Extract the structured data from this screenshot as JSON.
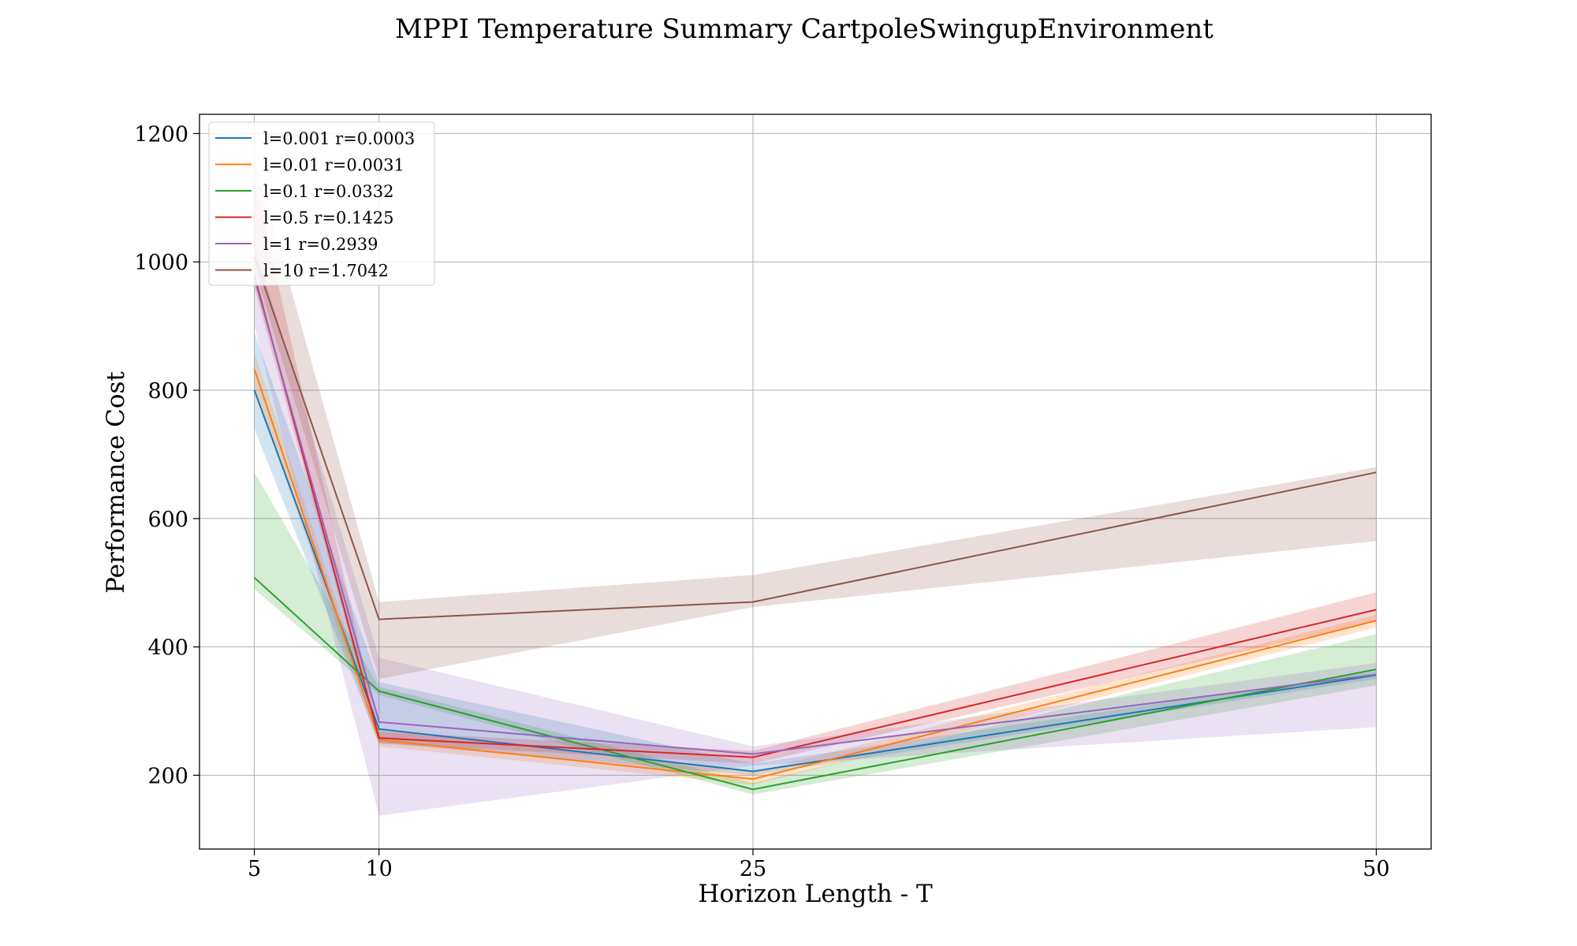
{
  "chart_data": {
    "type": "line",
    "title": "MPPI Temperature Summary CartpoleSwingupEnvironment",
    "xlabel": "Horizon Length - T",
    "ylabel": "Performance Cost",
    "x": [
      5,
      10,
      25,
      50
    ],
    "x_ticks": [
      "5",
      "10",
      "25",
      "50"
    ],
    "xlim": [
      2.8,
      52.2
    ],
    "ylim": [
      85,
      1230
    ],
    "y_ticks": [
      "200",
      "400",
      "600",
      "800",
      "1000",
      "1200"
    ],
    "grid": true,
    "legend_position": "upper-left",
    "series": [
      {
        "name": "l=0.001 r=0.0003",
        "color": "#1f77b4",
        "values": [
          800,
          272,
          206,
          356
        ],
        "lower": [
          740,
          250,
          200,
          350
        ],
        "upper": [
          890,
          345,
          218,
          362
        ]
      },
      {
        "name": "l=0.01 r=0.0031",
        "color": "#ff7f0e",
        "values": [
          833,
          255,
          194,
          441
        ],
        "lower": [
          800,
          245,
          185,
          430
        ],
        "upper": [
          860,
          270,
          205,
          450
        ]
      },
      {
        "name": "l=0.1 r=0.0332",
        "color": "#2ca02c",
        "values": [
          508,
          331,
          178,
          365
        ],
        "lower": [
          490,
          325,
          170,
          340
        ],
        "upper": [
          672,
          338,
          188,
          420
        ]
      },
      {
        "name": "l=0.5 r=0.1425",
        "color": "#d62728",
        "values": [
          980,
          258,
          228,
          458
        ],
        "lower": [
          960,
          250,
          218,
          440
        ],
        "upper": [
          1130,
          268,
          238,
          485
        ]
      },
      {
        "name": "l=1 r=0.2939",
        "color": "#9467bd",
        "values": [
          975,
          283,
          233,
          357
        ],
        "lower": [
          900,
          137,
          215,
          275
        ],
        "upper": [
          1030,
          383,
          245,
          375
        ]
      },
      {
        "name": "l=10 r=1.7042",
        "color": "#8c564b",
        "values": [
          1008,
          443,
          470,
          672
        ],
        "lower": [
          990,
          350,
          462,
          565
        ],
        "upper": [
          1160,
          470,
          512,
          680
        ]
      }
    ]
  }
}
